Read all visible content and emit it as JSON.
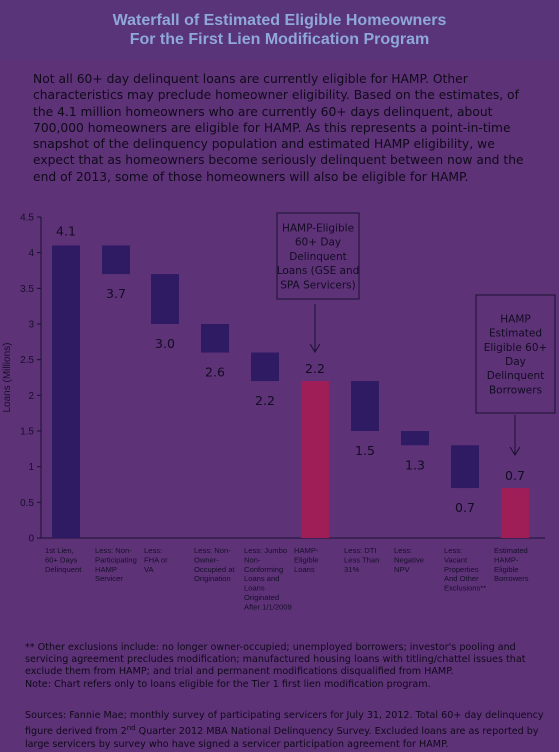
{
  "header": {
    "title_line1": "Waterfall of Estimated Eligible Homeowners",
    "title_line2": "For the First Lien Modification Program"
  },
  "intro_text": "Not all 60+ day delinquent loans are currently eligible for HAMP. Other characteristics may preclude homeowner eligibility. Based on the estimates, of the 4.1 million homeowners who are currently 60+ days delinquent, about 700,000 homeowners are eligible for HAMP. As this represents a point-in-time snapshot of the delinquency population and estimated HAMP eligibility, we expect that as homeowners become seriously delinquent between now and the end of 2013, some of those homeowners will also be eligible for HAMP.",
  "chart_data": {
    "type": "bar",
    "subtype": "waterfall",
    "ylabel": "Loans (Millions)",
    "ylim": [
      0,
      4.5
    ],
    "yticks": [
      "0",
      "0.5",
      "1",
      "1.5",
      "2",
      "2.5",
      "3",
      "3.5",
      "4",
      "4.5"
    ],
    "grid": false,
    "categories": [
      "1st Lien, 60+ Days Delinquent",
      "Less: Non-Participating HAMP Servicer",
      "Less: FHA or VA",
      "Less: Non-Owner-Occupied at Origination",
      "Less: Jumbo Non-Conforming Loans and Loans Originated After 1/1/2009",
      "HAMP-Eligible Loans",
      "Less: DTI Less Than 31%",
      "Less: Negative NPV",
      "Less: Vacant Properties And Other Exclusions**",
      "Estimated HAMP-Eligible Borrowers"
    ],
    "category_label_lines": [
      [
        "1st Lien,",
        "60+ Days",
        "Delinquent"
      ],
      [
        "Less: Non-",
        "Participating",
        "HAMP",
        "Servicer"
      ],
      [
        "Less:",
        "FHA or",
        "VA"
      ],
      [
        "Less: Non-",
        "Owner-",
        "Occupied at",
        "Origination"
      ],
      [
        "Less: Jumbo",
        "Non-",
        "Conforming",
        "Loans and",
        "Loans",
        "Originated",
        "After 1/1/2009"
      ],
      [
        "HAMP-",
        "Eligible",
        "Loans"
      ],
      [
        "Less: DTI",
        "Less Than",
        " 31%"
      ],
      [
        "Less:",
        "Negative",
        "NPV"
      ],
      [
        "Less:",
        "Vacant",
        "Properties",
        "And Other",
        "Exclusions**"
      ],
      [
        "Estimated",
        "HAMP-",
        "Eligible",
        "Borrowers"
      ]
    ],
    "bars": [
      {
        "bottom": 0,
        "top": 4.1,
        "kind": "total"
      },
      {
        "bottom": 3.7,
        "top": 4.1,
        "kind": "reduction"
      },
      {
        "bottom": 3.0,
        "top": 3.7,
        "kind": "reduction"
      },
      {
        "bottom": 2.6,
        "top": 3.0,
        "kind": "reduction"
      },
      {
        "bottom": 2.2,
        "top": 2.6,
        "kind": "reduction"
      },
      {
        "bottom": 0,
        "top": 2.2,
        "kind": "subtotal"
      },
      {
        "bottom": 1.5,
        "top": 2.2,
        "kind": "reduction"
      },
      {
        "bottom": 1.3,
        "top": 1.5,
        "kind": "reduction"
      },
      {
        "bottom": 0.7,
        "top": 1.3,
        "kind": "reduction"
      },
      {
        "bottom": 0,
        "top": 0.7,
        "kind": "subtotal"
      }
    ],
    "data_labels": [
      "4.1",
      "3.7",
      "3.0",
      "2.6",
      "2.2",
      "2.2",
      "1.5",
      "1.3",
      "0.7",
      "0.7"
    ],
    "colors": {
      "total": "#2f1a64",
      "reduction": "#2f1a64",
      "subtotal": "#a01e58"
    },
    "annotations": [
      {
        "target_index": 5,
        "lines": [
          "HAMP-Eligible",
          "60+ Day",
          "Delinquent",
          "Loans (GSE and",
          "SPA Servicers)"
        ]
      },
      {
        "target_index": 9,
        "lines": [
          "HAMP",
          "Estimated",
          "Eligible 60+",
          "Day",
          "Delinquent",
          "Borrowers"
        ]
      }
    ]
  },
  "footer": {
    "exclusions_note": "** Other exclusions include: no longer owner-occupied; unemployed borrowers; investor's pooling and servicing agreement precludes modification; manufactured housing loans with titling/chattel issues that exclude them from HAMP; and trial and permanent modifications disqualified from HAMP.",
    "chart_note": "Note: Chart refers only to loans eligible for the Tier 1 first lien modification program.",
    "sources_before_sup": "Sources: Fannie Mae; monthly survey of participating servicers for July 31, 2012. Total 60+ day delinquency figure derived from 2",
    "sources_sup": "nd",
    "sources_after_sup": " Quarter 2012 MBA National Delinquency Survey. Excluded loans are as reported by large servicers by survey who have signed a servicer participation agreement for HAMP."
  }
}
